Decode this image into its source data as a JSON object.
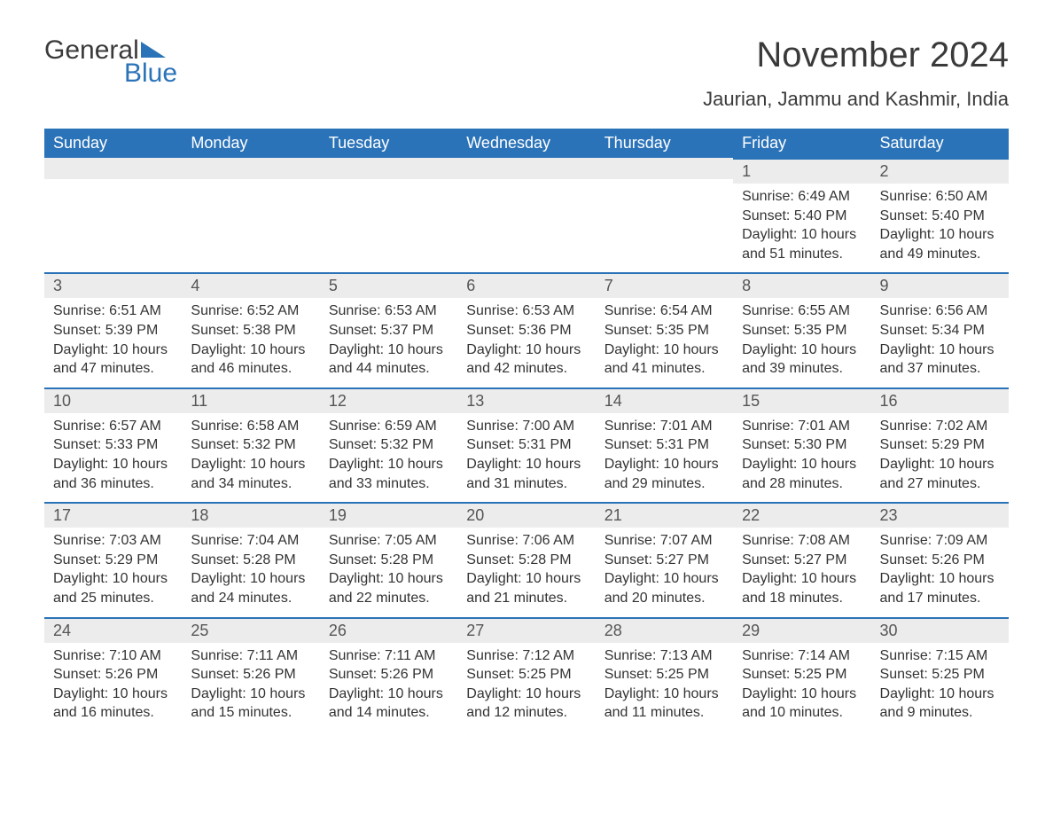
{
  "logo": {
    "word1": "General",
    "word2": "Blue"
  },
  "title": "November 2024",
  "location": "Jaurian, Jammu and Kashmir, India",
  "colors": {
    "brand_blue": "#2b73b8",
    "header_bg": "#2b73b8",
    "header_text": "#ffffff",
    "daynum_bg": "#ececec",
    "body_text": "#333333",
    "background": "#ffffff"
  },
  "typography": {
    "title_fontsize": 40,
    "location_fontsize": 22,
    "header_fontsize": 18,
    "daynum_fontsize": 18,
    "content_fontsize": 16,
    "font_family": "Arial"
  },
  "layout": {
    "columns": 7,
    "rows": 5,
    "first_day_column_index": 5
  },
  "day_headers": [
    "Sunday",
    "Monday",
    "Tuesday",
    "Wednesday",
    "Thursday",
    "Friday",
    "Saturday"
  ],
  "days": [
    {
      "n": 1,
      "sunrise": "6:49 AM",
      "sunset": "5:40 PM",
      "daylight": "10 hours and 51 minutes."
    },
    {
      "n": 2,
      "sunrise": "6:50 AM",
      "sunset": "5:40 PM",
      "daylight": "10 hours and 49 minutes."
    },
    {
      "n": 3,
      "sunrise": "6:51 AM",
      "sunset": "5:39 PM",
      "daylight": "10 hours and 47 minutes."
    },
    {
      "n": 4,
      "sunrise": "6:52 AM",
      "sunset": "5:38 PM",
      "daylight": "10 hours and 46 minutes."
    },
    {
      "n": 5,
      "sunrise": "6:53 AM",
      "sunset": "5:37 PM",
      "daylight": "10 hours and 44 minutes."
    },
    {
      "n": 6,
      "sunrise": "6:53 AM",
      "sunset": "5:36 PM",
      "daylight": "10 hours and 42 minutes."
    },
    {
      "n": 7,
      "sunrise": "6:54 AM",
      "sunset": "5:35 PM",
      "daylight": "10 hours and 41 minutes."
    },
    {
      "n": 8,
      "sunrise": "6:55 AM",
      "sunset": "5:35 PM",
      "daylight": "10 hours and 39 minutes."
    },
    {
      "n": 9,
      "sunrise": "6:56 AM",
      "sunset": "5:34 PM",
      "daylight": "10 hours and 37 minutes."
    },
    {
      "n": 10,
      "sunrise": "6:57 AM",
      "sunset": "5:33 PM",
      "daylight": "10 hours and 36 minutes."
    },
    {
      "n": 11,
      "sunrise": "6:58 AM",
      "sunset": "5:32 PM",
      "daylight": "10 hours and 34 minutes."
    },
    {
      "n": 12,
      "sunrise": "6:59 AM",
      "sunset": "5:32 PM",
      "daylight": "10 hours and 33 minutes."
    },
    {
      "n": 13,
      "sunrise": "7:00 AM",
      "sunset": "5:31 PM",
      "daylight": "10 hours and 31 minutes."
    },
    {
      "n": 14,
      "sunrise": "7:01 AM",
      "sunset": "5:31 PM",
      "daylight": "10 hours and 29 minutes."
    },
    {
      "n": 15,
      "sunrise": "7:01 AM",
      "sunset": "5:30 PM",
      "daylight": "10 hours and 28 minutes."
    },
    {
      "n": 16,
      "sunrise": "7:02 AM",
      "sunset": "5:29 PM",
      "daylight": "10 hours and 27 minutes."
    },
    {
      "n": 17,
      "sunrise": "7:03 AM",
      "sunset": "5:29 PM",
      "daylight": "10 hours and 25 minutes."
    },
    {
      "n": 18,
      "sunrise": "7:04 AM",
      "sunset": "5:28 PM",
      "daylight": "10 hours and 24 minutes."
    },
    {
      "n": 19,
      "sunrise": "7:05 AM",
      "sunset": "5:28 PM",
      "daylight": "10 hours and 22 minutes."
    },
    {
      "n": 20,
      "sunrise": "7:06 AM",
      "sunset": "5:28 PM",
      "daylight": "10 hours and 21 minutes."
    },
    {
      "n": 21,
      "sunrise": "7:07 AM",
      "sunset": "5:27 PM",
      "daylight": "10 hours and 20 minutes."
    },
    {
      "n": 22,
      "sunrise": "7:08 AM",
      "sunset": "5:27 PM",
      "daylight": "10 hours and 18 minutes."
    },
    {
      "n": 23,
      "sunrise": "7:09 AM",
      "sunset": "5:26 PM",
      "daylight": "10 hours and 17 minutes."
    },
    {
      "n": 24,
      "sunrise": "7:10 AM",
      "sunset": "5:26 PM",
      "daylight": "10 hours and 16 minutes."
    },
    {
      "n": 25,
      "sunrise": "7:11 AM",
      "sunset": "5:26 PM",
      "daylight": "10 hours and 15 minutes."
    },
    {
      "n": 26,
      "sunrise": "7:11 AM",
      "sunset": "5:26 PM",
      "daylight": "10 hours and 14 minutes."
    },
    {
      "n": 27,
      "sunrise": "7:12 AM",
      "sunset": "5:25 PM",
      "daylight": "10 hours and 12 minutes."
    },
    {
      "n": 28,
      "sunrise": "7:13 AM",
      "sunset": "5:25 PM",
      "daylight": "10 hours and 11 minutes."
    },
    {
      "n": 29,
      "sunrise": "7:14 AM",
      "sunset": "5:25 PM",
      "daylight": "10 hours and 10 minutes."
    },
    {
      "n": 30,
      "sunrise": "7:15 AM",
      "sunset": "5:25 PM",
      "daylight": "10 hours and 9 minutes."
    }
  ],
  "labels": {
    "sunrise_prefix": "Sunrise: ",
    "sunset_prefix": "Sunset: ",
    "daylight_prefix": "Daylight: "
  }
}
